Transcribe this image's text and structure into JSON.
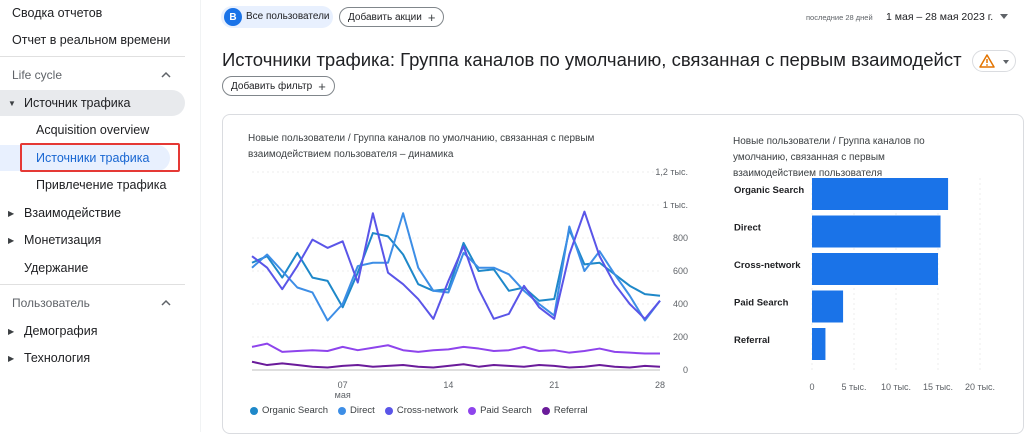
{
  "sidebar": {
    "top_items": [
      "Сводка отчетов",
      "Отчет в реальном времени"
    ],
    "section_lifecycle": "Life cycle",
    "traffic_group": "Источник трафика",
    "sub_items": [
      "Acquisition overview",
      "Источники трафика",
      "Привлечение трафика"
    ],
    "lifecycle_groups": [
      "Взаимодействие",
      "Монетизация",
      "Удержание"
    ],
    "section_user": "Пользователь",
    "user_groups": [
      "Демография",
      "Технология"
    ]
  },
  "header": {
    "avatar_letter": "B",
    "segment_label": "Все пользователи",
    "add_comparison": "Добавить акции",
    "date_prefix": "последние 28 дней",
    "date_range": "1 мая – 28 мая 2023 г.",
    "title": "Источники трафика: Группа каналов по умолчанию, связанная с первым взаимодействием по...",
    "add_filter": "Добавить фильтр"
  },
  "colors": {
    "organic": "#1e88c9",
    "direct": "#3d8ee6",
    "cross": "#5a55e8",
    "paid": "#8e44ec",
    "referral": "#6a1b9a",
    "bar": "#1a73e8",
    "warning": "#e37400"
  },
  "line_chart": {
    "title_line1": "Новые пользователи / Группа каналов по умолчанию, связанная с первым",
    "title_line2": "взаимодействием пользователя – динамика"
  },
  "bar_chart": {
    "title_line1": "Новые пользователи / Группа каналов по",
    "title_line2": "умолчанию, связанная с первым",
    "title_line3": "взаимодействием пользователя"
  },
  "legend": [
    "Organic Search",
    "Direct",
    "Cross-network",
    "Paid Search",
    "Referral"
  ],
  "chart_data": [
    {
      "type": "line",
      "title": "Новые пользователи / Группа каналов по умолчанию, связанная с первым взаимодействием пользователя – динамика",
      "x": [
        1,
        2,
        3,
        4,
        5,
        6,
        7,
        8,
        9,
        10,
        11,
        12,
        13,
        14,
        15,
        16,
        17,
        18,
        19,
        20,
        21,
        22,
        23,
        24,
        25,
        26,
        27,
        28
      ],
      "x_tick_labels": [
        "07\nмая",
        "14",
        "21",
        "28"
      ],
      "x_tick_positions": [
        7,
        14,
        21,
        28
      ],
      "y_ticks": [
        "0",
        "200",
        "400",
        "600",
        "800",
        "1 тыс.",
        "1,2 тыс."
      ],
      "ylim": [
        0,
        1200
      ],
      "series": [
        {
          "name": "Organic Search",
          "values": [
            650,
            690,
            560,
            710,
            560,
            540,
            380,
            590,
            830,
            810,
            700,
            520,
            480,
            490,
            770,
            600,
            610,
            480,
            500,
            420,
            430,
            850,
            640,
            650,
            580,
            510,
            460,
            450
          ]
        },
        {
          "name": "Direct",
          "values": [
            620,
            700,
            600,
            500,
            470,
            300,
            400,
            630,
            650,
            650,
            950,
            620,
            480,
            470,
            710,
            620,
            620,
            580,
            480,
            400,
            330,
            870,
            600,
            720,
            580,
            450,
            300,
            420
          ]
        },
        {
          "name": "Cross-network",
          "values": [
            690,
            620,
            490,
            630,
            790,
            740,
            780,
            530,
            950,
            590,
            520,
            430,
            310,
            540,
            750,
            490,
            310,
            340,
            510,
            380,
            310,
            700,
            960,
            690,
            520,
            400,
            310,
            420
          ]
        },
        {
          "name": "Paid Search",
          "values": [
            140,
            160,
            110,
            115,
            120,
            115,
            140,
            120,
            135,
            150,
            120,
            110,
            120,
            125,
            140,
            130,
            115,
            120,
            140,
            115,
            120,
            105,
            115,
            130,
            110,
            105,
            100,
            100
          ]
        },
        {
          "name": "Referral",
          "values": [
            50,
            30,
            40,
            30,
            20,
            15,
            25,
            30,
            20,
            25,
            30,
            20,
            15,
            25,
            35,
            20,
            30,
            25,
            20,
            30,
            25,
            15,
            20,
            30,
            20,
            15,
            25,
            20
          ]
        }
      ]
    },
    {
      "type": "bar",
      "orientation": "horizontal",
      "title": "Новые пользователи / Группа каналов по умолчанию, связанная с первым взаимодействием пользователя",
      "categories": [
        "Organic Search",
        "Direct",
        "Cross-network",
        "Paid Search",
        "Referral"
      ],
      "values": [
        16200,
        15300,
        15000,
        3700,
        1600
      ],
      "x_ticks": [
        "0",
        "5 тыс.",
        "10 тыс.",
        "15 тыс.",
        "20 тыс."
      ],
      "xlim": [
        0,
        20000
      ]
    }
  ]
}
